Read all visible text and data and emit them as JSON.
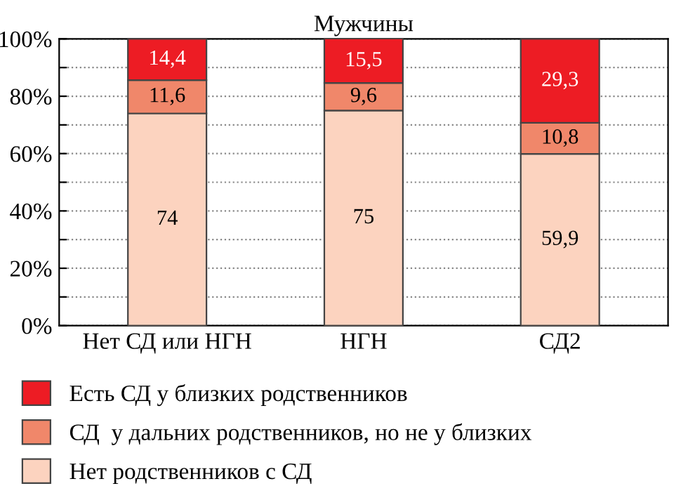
{
  "chart_data": {
    "type": "bar",
    "title": "Мужчины",
    "stacked": true,
    "categories": [
      "Нет СД или НГН",
      "НГН",
      "СД2"
    ],
    "series": [
      {
        "name": "Нет родственников с СД",
        "color": "#fcd3bf",
        "values": [
          74,
          75,
          59.9
        ],
        "value_labels": [
          "74",
          "75",
          "59,9"
        ]
      },
      {
        "name": "СД  у дальних родственников, но не у близких",
        "color": "#f0876a",
        "values": [
          11.6,
          9.6,
          10.8
        ],
        "value_labels": [
          "11,6",
          "9,6",
          "10,8"
        ]
      },
      {
        "name": "Есть СД у близких родственников",
        "color": "#ed1c24",
        "values": [
          14.4,
          15.5,
          29.3
        ],
        "value_labels": [
          "14,4",
          "15,5",
          "29,3"
        ]
      }
    ],
    "ylim": [
      0,
      100
    ],
    "yticks": [
      {
        "value": 0,
        "label": "0%"
      },
      {
        "value": 10,
        "label": null
      },
      {
        "value": 20,
        "label": "20%"
      },
      {
        "value": 30,
        "label": null
      },
      {
        "value": 40,
        "label": "40%"
      },
      {
        "value": 50,
        "label": null
      },
      {
        "value": 60,
        "label": "60%"
      },
      {
        "value": 70,
        "label": null
      },
      {
        "value": 80,
        "label": "80%"
      },
      {
        "value": 90,
        "label": null
      },
      {
        "value": 100,
        "label": "100%"
      }
    ],
    "grid": "y",
    "legend": "bottom"
  }
}
